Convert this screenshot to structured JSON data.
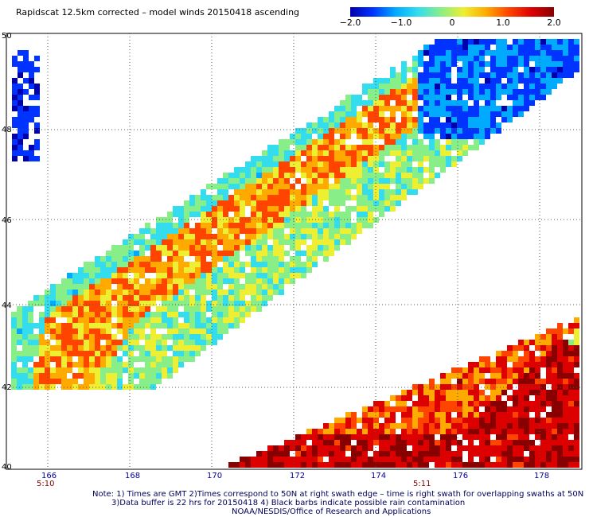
{
  "title": "Rapidscat 12.5km corrected – model winds 20150418 ascending",
  "colorbar": {
    "ticks": [
      "−2.0",
      "−1.0",
      "0",
      "1.0",
      "2.0"
    ],
    "tick_values": [
      -2,
      -1,
      0,
      1,
      2
    ],
    "colors": [
      "#0000aa",
      "#0033ff",
      "#00aaff",
      "#33ddee",
      "#88ee88",
      "#eeee33",
      "#ffaa00",
      "#ff4400",
      "#dd0000",
      "#880000"
    ]
  },
  "map": {
    "lon_labels": [
      "166",
      "168",
      "170",
      "172",
      "174",
      "176",
      "178"
    ],
    "lat_labels": [
      "40",
      "42",
      "44",
      "46",
      "48",
      "50"
    ],
    "time_labels": [
      "5:10",
      "5:11"
    ],
    "lon_range": [
      165.7,
      179.0
    ],
    "lat_range": [
      40,
      50
    ],
    "colors": {
      "grid": "#555555",
      "lon_labels": "#000099",
      "time_labels": "#880000"
    }
  },
  "notes": {
    "line1": "Note: 1) Times are GMT 2)Times correspond to 50N at right swath edge – time is right swath for overlapping swaths at 50N",
    "line2": "3)Data buffer is 22 hrs for 20150418 4) Black barbs indicate possible rain contamination",
    "line3": "NOAA/NESDIS/Office of Research and Applications"
  }
}
